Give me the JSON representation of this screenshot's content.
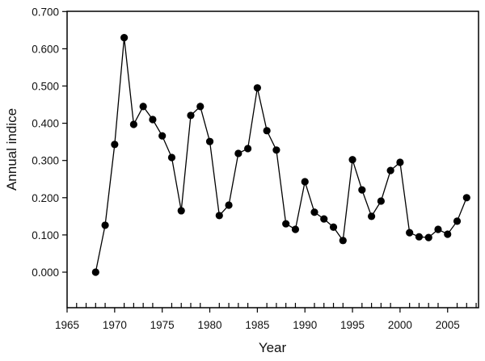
{
  "chart_data": {
    "type": "line",
    "title": "",
    "xlabel": "Year",
    "ylabel": "Annual indice",
    "xlim": [
      1965,
      2008
    ],
    "ylim": [
      -0.1,
      0.7
    ],
    "x_ticks": [
      "1965",
      "1970",
      "1975",
      "1980",
      "1985",
      "1990",
      "1995",
      "2000",
      "2005"
    ],
    "y_ticks": [
      "0.000",
      "0.100",
      "0.200",
      "0.300",
      "0.400",
      "0.500",
      "0.600",
      "0.700"
    ],
    "grid": false,
    "legend": null,
    "marker": "filled-circle",
    "line_color": "#000000",
    "x": [
      1968,
      1969,
      1970,
      1971,
      1972,
      1973,
      1974,
      1975,
      1976,
      1977,
      1978,
      1979,
      1980,
      1981,
      1982,
      1983,
      1984,
      1985,
      1986,
      1987,
      1988,
      1989,
      1990,
      1991,
      1992,
      1993,
      1994,
      1995,
      1996,
      1997,
      1998,
      1999,
      2000,
      2001,
      2002,
      2003,
      2004,
      2005,
      2006,
      2007
    ],
    "series": [
      {
        "name": "Annual indice",
        "values": [
          0.0,
          0.126,
          0.343,
          0.63,
          0.397,
          0.445,
          0.41,
          0.366,
          0.308,
          0.165,
          0.421,
          0.445,
          0.351,
          0.152,
          0.18,
          0.319,
          0.332,
          0.495,
          0.38,
          0.328,
          0.13,
          0.115,
          0.243,
          0.161,
          0.143,
          0.121,
          0.085,
          0.302,
          0.221,
          0.15,
          0.191,
          0.273,
          0.295,
          0.106,
          0.095,
          0.093,
          0.115,
          0.102,
          0.137,
          0.2
        ]
      }
    ]
  }
}
